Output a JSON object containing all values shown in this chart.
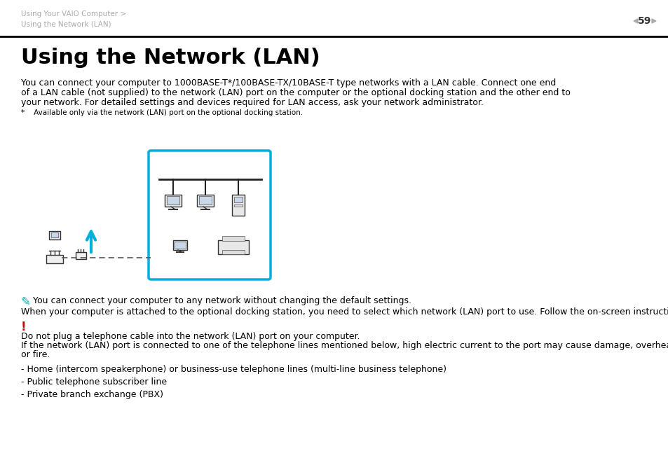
{
  "bg_color": "#ffffff",
  "breadcrumb_line1": "Using Your VAIO Computer >",
  "breadcrumb_line2": "Using the Network (LAN)",
  "header_page": "59",
  "header_breadcrumb_color": "#aaaaaa",
  "header_line_color": "#000000",
  "title": "Using the Network (LAN)",
  "title_fontsize": 22,
  "body_line1": "You can connect your computer to 1000BASE-T*/100BASE-TX/10BASE-T type networks with a LAN cable. Connect one end",
  "body_line2": "of a LAN cable (not supplied) to the network (LAN) port on the computer or the optional docking station and the other end to",
  "body_line3": "your network. For detailed settings and devices required for LAN access, ask your network administrator.",
  "footnote": "*    Available only via the network (LAN) port on the optional docking station.",
  "note_icon_color": "#00aaaa",
  "note_text1": "You can connect your computer to any network without changing the default settings.",
  "note_text2": "When your computer is attached to the optional docking station, you need to select which network (LAN) port to use. Follow the on-screen instructions.",
  "warning_icon_color": "#cc0000",
  "warning_line1": "Do not plug a telephone cable into the network (LAN) port on your computer.",
  "warning_line2": "If the network (LAN) port is connected to one of the telephone lines mentioned below, high electric current to the port may cause damage, overheating,",
  "warning_line3": "or fire.",
  "bullet1": "- Home (intercom speakerphone) or business-use telephone lines (multi-line business telephone)",
  "bullet2": "- Public telephone subscriber line",
  "bullet3": "- Private branch exchange (PBX)",
  "diagram_box_color": "#00b0d8",
  "diagram_box_fill": "#ffffff",
  "body_fontsize": 9,
  "small_fontsize": 7.5,
  "arrow_color": "#00b0d8"
}
